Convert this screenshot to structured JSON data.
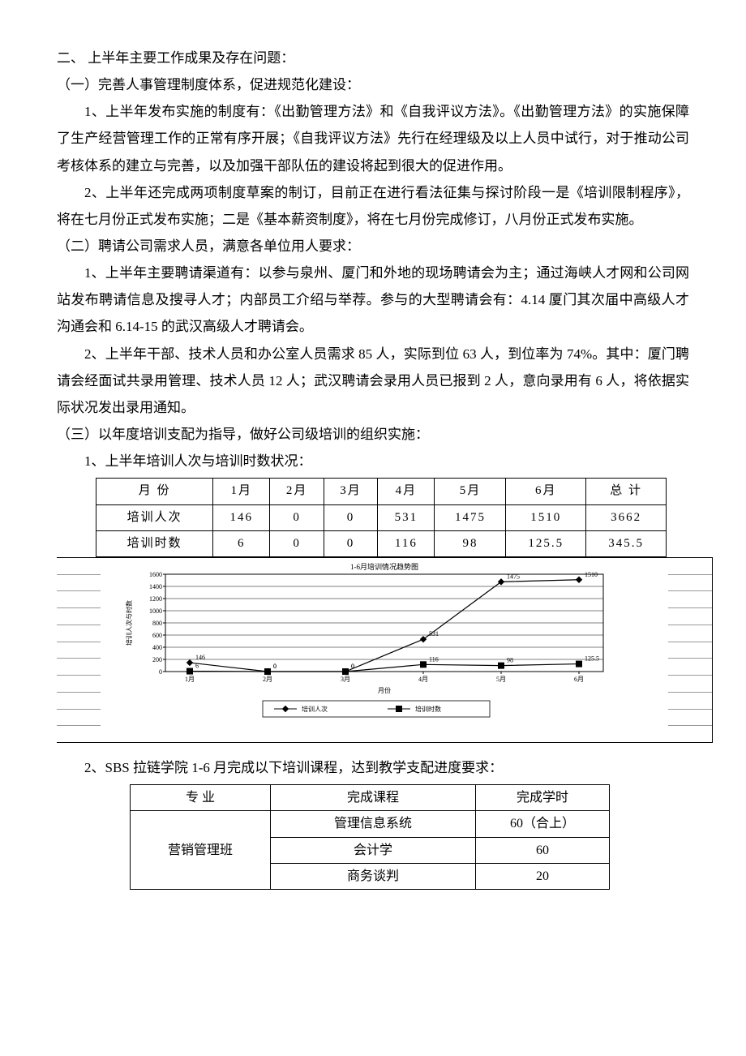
{
  "section2": {
    "title": "二、 上半年主要工作成果及存在问题：",
    "sub1": {
      "title": "（一）完善人事管理制度体系，促进规范化建设：",
      "p1": "1、上半年发布实施的制度有：《出勤管理方法》和《自我评议方法》。《出勤管理方法》的实施保障了生产经营管理工作的正常有序开展；《自我评议方法》先行在经理级及以上人员中试行，对于推动公司考核体系的建立与完善，以及加强干部队伍的建设将起到很大的促进作用。",
      "p2": "2、上半年还完成两项制度草案的制订，目前正在进行看法征集与探讨阶段一是《培训限制程序》，将在七月份正式发布实施；二是《基本薪资制度》，将在七月份完成修订，八月份正式发布实施。"
    },
    "sub2": {
      "title": "（二）聘请公司需求人员，满意各单位用人要求：",
      "p1": "1、上半年主要聘请渠道有：以参与泉州、厦门和外地的现场聘请会为主；通过海峡人才网和公司网站发布聘请信息及搜寻人才；内部员工介绍与举荐。参与的大型聘请会有：4.14 厦门其次届中高级人才沟通会和 6.14-15 的武汉高级人才聘请会。",
      "p2": "2、上半年干部、技术人员和办公室人员需求 85 人，实际到位 63 人，到位率为 74%。其中：厦门聘请会经面试共录用管理、技术人员 12 人；武汉聘请会录用人员已报到 2 人，意向录用有 6 人，将依据实际状况发出录用通知。"
    },
    "sub3": {
      "title": "（三）以年度培训支配为指导，做好公司级培训的组织实施：",
      "p1": "1、上半年培训人次与培训时数状况：",
      "p2": "2、SBS 拉链学院 1-6 月完成以下培训课程，达到教学支配进度要求："
    }
  },
  "table1": {
    "headers": [
      "月 份",
      "1月",
      "2月",
      "3月",
      "4月",
      "5月",
      "6月",
      "总 计"
    ],
    "rows": [
      {
        "label": "培训人次",
        "vals": [
          "146",
          "0",
          "0",
          "531",
          "1475",
          "1510",
          "3662"
        ]
      },
      {
        "label": "培训时数",
        "vals": [
          "6",
          "0",
          "0",
          "116",
          "98",
          "125.5",
          "345.5"
        ]
      }
    ]
  },
  "chart": {
    "title": "1-6月培训情况趋势图",
    "xlabel": "月份",
    "ylabel": "培训人次与时数",
    "categories": [
      "1月",
      "2月",
      "3月",
      "4月",
      "5月",
      "6月"
    ],
    "series": [
      {
        "name": "培训人次",
        "marker": "diamond",
        "values": [
          146,
          0,
          0,
          531,
          1475,
          1510
        ],
        "labels": [
          "146",
          "0",
          "0",
          "531",
          "1475",
          "1510"
        ]
      },
      {
        "name": "培训时数",
        "marker": "square",
        "values": [
          6,
          0,
          0,
          116,
          98,
          125.5
        ],
        "labels": [
          "6",
          "0",
          "0",
          "116",
          "98",
          "125.5"
        ]
      }
    ],
    "ylim": [
      0,
      1600
    ],
    "ytick_step": 200,
    "grid_color": "#000000",
    "line_color": "#000000",
    "marker_fill": "#000000",
    "background_color": "#ffffff",
    "title_fontsize": 9,
    "axis_fontsize": 8,
    "tick_fontsize": 8,
    "legend_fontsize": 8,
    "datalabel_fontsize": 8
  },
  "table2": {
    "headers": [
      "专 业",
      "完成课程",
      "完成学时"
    ],
    "group_label": "营销管理班",
    "rows": [
      {
        "course": "管理信息系统",
        "hours": "60（合上）"
      },
      {
        "course": "会计学",
        "hours": "60"
      },
      {
        "course": "商务谈判",
        "hours": "20"
      }
    ]
  }
}
